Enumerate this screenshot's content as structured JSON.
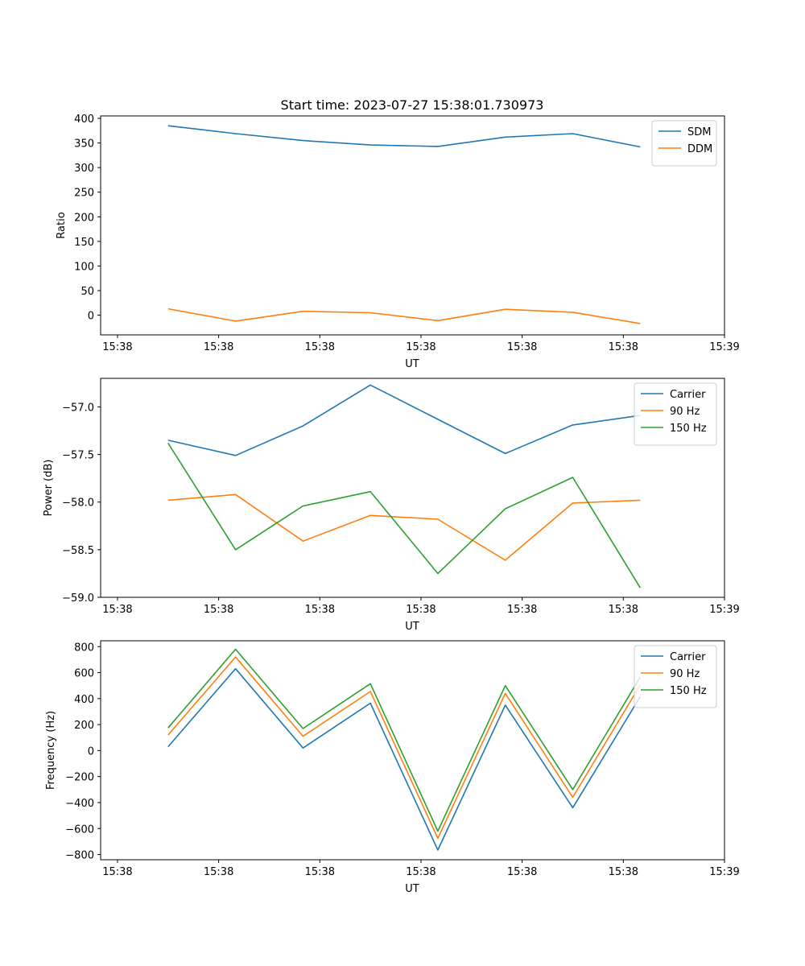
{
  "chart_data": [
    {
      "type": "line",
      "title": "Start time: 2023-07-27 15:38:01.730973",
      "xlabel": "UT",
      "ylabel": "Ratio",
      "xlim": [
        0,
        9.25
      ],
      "ylim": [
        -40,
        405
      ],
      "x": [
        1,
        2,
        3,
        4,
        5,
        6,
        7,
        8
      ],
      "x_ticks": [
        0.25,
        1.75,
        3.25,
        4.75,
        6.25,
        7.75,
        9.25
      ],
      "x_tick_labels": [
        "15:38",
        "15:38",
        "15:38",
        "15:38",
        "15:38",
        "15:38",
        "15:39"
      ],
      "y_ticks": [
        0,
        50,
        100,
        150,
        200,
        250,
        300,
        350,
        400
      ],
      "y_tick_labels": [
        "0",
        "50",
        "100",
        "150",
        "200",
        "250",
        "300",
        "350",
        "400"
      ],
      "legend_position": "top-right",
      "series": [
        {
          "name": "SDM",
          "color": "#1f77b4",
          "values": [
            385,
            369,
            355,
            346,
            343,
            362,
            369,
            342
          ]
        },
        {
          "name": "DDM",
          "color": "#ff7f0e",
          "values": [
            13,
            -12,
            8,
            5,
            -11,
            12,
            6,
            -17
          ]
        }
      ]
    },
    {
      "type": "line",
      "title": "",
      "xlabel": "UT",
      "ylabel": "Power (dB)",
      "xlim": [
        0,
        9.25
      ],
      "ylim": [
        -59.0,
        -56.7
      ],
      "x": [
        1,
        2,
        3,
        4,
        5,
        6,
        7,
        8
      ],
      "x_ticks": [
        0.25,
        1.75,
        3.25,
        4.75,
        6.25,
        7.75,
        9.25
      ],
      "x_tick_labels": [
        "15:38",
        "15:38",
        "15:38",
        "15:38",
        "15:38",
        "15:38",
        "15:39"
      ],
      "y_ticks": [
        -59.0,
        -58.5,
        -58.0,
        -57.5,
        -57.0
      ],
      "y_tick_labels": [
        "−59.0",
        "−58.5",
        "−58.0",
        "−57.5",
        "−57.0"
      ],
      "legend_position": "top-right",
      "series": [
        {
          "name": "Carrier",
          "color": "#1f77b4",
          "values": [
            -57.35,
            -57.51,
            -57.2,
            -56.77,
            -57.13,
            -57.49,
            -57.19,
            -57.09
          ]
        },
        {
          "name": "90 Hz",
          "color": "#ff7f0e",
          "values": [
            -57.98,
            -57.92,
            -58.41,
            -58.14,
            -58.18,
            -58.61,
            -58.01,
            -57.98
          ]
        },
        {
          "name": "150 Hz",
          "color": "#2ca02c",
          "values": [
            -57.38,
            -58.5,
            -58.04,
            -57.89,
            -58.75,
            -58.07,
            -57.74,
            -58.9
          ]
        }
      ]
    },
    {
      "type": "line",
      "title": "",
      "xlabel": "UT",
      "ylabel": "Frequency (Hz)",
      "xlim": [
        0,
        9.25
      ],
      "ylim": [
        -840,
        845
      ],
      "x": [
        1,
        2,
        3,
        4,
        5,
        6,
        7,
        8
      ],
      "x_ticks": [
        0.25,
        1.75,
        3.25,
        4.75,
        6.25,
        7.75,
        9.25
      ],
      "x_tick_labels": [
        "15:38",
        "15:38",
        "15:38",
        "15:38",
        "15:38",
        "15:38",
        "15:39"
      ],
      "y_ticks": [
        -800,
        -600,
        -400,
        -200,
        0,
        200,
        400,
        600,
        800
      ],
      "y_tick_labels": [
        "−800",
        "−600",
        "−400",
        "−200",
        "0",
        "200",
        "400",
        "600",
        "800"
      ],
      "legend_position": "top-right",
      "series": [
        {
          "name": "Carrier",
          "color": "#1f77b4",
          "values": [
            30,
            630,
            20,
            365,
            -765,
            350,
            -440,
            415
          ]
        },
        {
          "name": "90 Hz",
          "color": "#ff7f0e",
          "values": [
            120,
            720,
            110,
            455,
            -675,
            440,
            -360,
            505
          ]
        },
        {
          "name": "150 Hz",
          "color": "#2ca02c",
          "values": [
            175,
            780,
            170,
            515,
            -620,
            500,
            -300,
            565
          ]
        }
      ]
    }
  ]
}
